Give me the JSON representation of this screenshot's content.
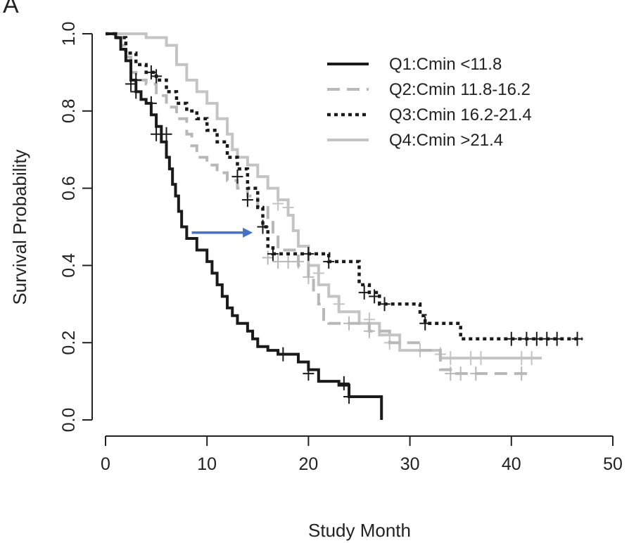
{
  "chart_data": {
    "type": "line",
    "subtype": "kaplan-meier",
    "panel_label": "A",
    "xlabel": "Study Month",
    "ylabel": "Survival Probability",
    "xlim": [
      0,
      50
    ],
    "ylim": [
      0.0,
      1.0
    ],
    "x_ticks": [
      "0",
      "10",
      "20",
      "30",
      "40",
      "50"
    ],
    "y_ticks": [
      "0.0",
      "0.2",
      "0.4",
      "0.6",
      "0.8",
      "1.0"
    ],
    "grid": false,
    "legend_position": "top-right",
    "series": [
      {
        "name": "Q1:Cmin <11.8",
        "color": "#1a1a1a",
        "style": "solid",
        "steps": [
          [
            0,
            1.0
          ],
          [
            1,
            0.99
          ],
          [
            1.5,
            0.96
          ],
          [
            2,
            0.93
          ],
          [
            2.5,
            0.88
          ],
          [
            3,
            0.85
          ],
          [
            3.5,
            0.83
          ],
          [
            4,
            0.82
          ],
          [
            4.5,
            0.79
          ],
          [
            5,
            0.76
          ],
          [
            5.5,
            0.72
          ],
          [
            6,
            0.68
          ],
          [
            6.3,
            0.65
          ],
          [
            6.6,
            0.61
          ],
          [
            6.9,
            0.58
          ],
          [
            7.2,
            0.54
          ],
          [
            7.5,
            0.5
          ],
          [
            8,
            0.47
          ],
          [
            9,
            0.44
          ],
          [
            10,
            0.41
          ],
          [
            10.5,
            0.38
          ],
          [
            11,
            0.35
          ],
          [
            11.5,
            0.32
          ],
          [
            12,
            0.29
          ],
          [
            12.5,
            0.27
          ],
          [
            13,
            0.25
          ],
          [
            14,
            0.23
          ],
          [
            14.5,
            0.21
          ],
          [
            15,
            0.19
          ],
          [
            16,
            0.18
          ],
          [
            17,
            0.17
          ],
          [
            19,
            0.15
          ],
          [
            20,
            0.13
          ],
          [
            21,
            0.1
          ],
          [
            23,
            0.09
          ],
          [
            24,
            0.06
          ],
          [
            27,
            0.06
          ],
          [
            27.2,
            0.0
          ]
        ],
        "censor": [
          [
            2.5,
            0.87
          ],
          [
            3,
            0.85
          ],
          [
            4.5,
            0.82
          ],
          [
            5,
            0.74
          ],
          [
            6,
            0.74
          ],
          [
            17.5,
            0.17
          ],
          [
            20,
            0.12
          ],
          [
            23.5,
            0.095
          ],
          [
            24,
            0.06
          ]
        ]
      },
      {
        "name": "Q2:Cmin 11.8-16.2",
        "color": "#b8b8b8",
        "style": "dashed",
        "steps": [
          [
            0,
            1.0
          ],
          [
            1,
            0.99
          ],
          [
            1.5,
            0.97
          ],
          [
            2,
            0.94
          ],
          [
            2.5,
            0.9
          ],
          [
            3,
            0.88
          ],
          [
            4,
            0.87
          ],
          [
            5,
            0.84
          ],
          [
            6,
            0.81
          ],
          [
            7,
            0.78
          ],
          [
            8,
            0.74
          ],
          [
            8.5,
            0.71
          ],
          [
            9,
            0.68
          ],
          [
            10,
            0.66
          ],
          [
            11,
            0.64
          ],
          [
            12,
            0.62
          ],
          [
            13,
            0.6
          ],
          [
            14,
            0.58
          ],
          [
            15,
            0.55
          ],
          [
            16,
            0.52
          ],
          [
            16.5,
            0.48
          ],
          [
            17,
            0.44
          ],
          [
            19,
            0.4
          ],
          [
            20,
            0.37
          ],
          [
            20.5,
            0.33
          ],
          [
            21,
            0.3
          ],
          [
            21.5,
            0.26
          ],
          [
            22,
            0.25
          ],
          [
            24,
            0.25
          ],
          [
            26,
            0.23
          ],
          [
            28,
            0.2
          ],
          [
            31,
            0.18
          ],
          [
            33,
            0.13
          ],
          [
            34,
            0.12
          ],
          [
            42,
            0.12
          ]
        ],
        "censor": [
          [
            16,
            0.42
          ],
          [
            17,
            0.41
          ],
          [
            18,
            0.41
          ],
          [
            19,
            0.41
          ],
          [
            20,
            0.37
          ],
          [
            24,
            0.25
          ],
          [
            26,
            0.23
          ],
          [
            34,
            0.12
          ],
          [
            35,
            0.12
          ],
          [
            36.5,
            0.12
          ],
          [
            41,
            0.12
          ]
        ]
      },
      {
        "name": "Q3:Cmin 16.2-21.4",
        "color": "#1a1a1a",
        "style": "dotted",
        "steps": [
          [
            0,
            1.0
          ],
          [
            1,
            0.99
          ],
          [
            2,
            0.95
          ],
          [
            3,
            0.92
          ],
          [
            4,
            0.9
          ],
          [
            5,
            0.88
          ],
          [
            6,
            0.85
          ],
          [
            7,
            0.82
          ],
          [
            8,
            0.8
          ],
          [
            9,
            0.78
          ],
          [
            10,
            0.75
          ],
          [
            11,
            0.72
          ],
          [
            12,
            0.68
          ],
          [
            13,
            0.65
          ],
          [
            14,
            0.6
          ],
          [
            15,
            0.55
          ],
          [
            15.5,
            0.5
          ],
          [
            16,
            0.45
          ],
          [
            16.5,
            0.43
          ],
          [
            20,
            0.43
          ],
          [
            22,
            0.41
          ],
          [
            25,
            0.35
          ],
          [
            26,
            0.33
          ],
          [
            27,
            0.3
          ],
          [
            31,
            0.27
          ],
          [
            31.5,
            0.25
          ],
          [
            35,
            0.21
          ],
          [
            47,
            0.21
          ]
        ],
        "censor": [
          [
            3,
            0.88
          ],
          [
            4.5,
            0.9
          ],
          [
            5,
            0.89
          ],
          [
            13,
            0.63
          ],
          [
            14,
            0.57
          ],
          [
            15.5,
            0.5
          ],
          [
            16.5,
            0.43
          ],
          [
            20,
            0.43
          ],
          [
            22,
            0.41
          ],
          [
            25.5,
            0.33
          ],
          [
            26.5,
            0.32
          ],
          [
            27.5,
            0.3
          ],
          [
            31.5,
            0.25
          ],
          [
            40,
            0.21
          ],
          [
            41.5,
            0.21
          ],
          [
            42.5,
            0.21
          ],
          [
            43.5,
            0.21
          ],
          [
            44.5,
            0.21
          ],
          [
            46.5,
            0.21
          ]
        ]
      },
      {
        "name": "Q4:Cmin >21.4",
        "color": "#c4c4c4",
        "style": "solid",
        "steps": [
          [
            0,
            1.0
          ],
          [
            2,
            1.0
          ],
          [
            4,
            0.99
          ],
          [
            6,
            0.97
          ],
          [
            7,
            0.92
          ],
          [
            8,
            0.88
          ],
          [
            9,
            0.85
          ],
          [
            10,
            0.82
          ],
          [
            11,
            0.78
          ],
          [
            12,
            0.74
          ],
          [
            12.5,
            0.7
          ],
          [
            13,
            0.68
          ],
          [
            14,
            0.66
          ],
          [
            15,
            0.63
          ],
          [
            16,
            0.6
          ],
          [
            17,
            0.57
          ],
          [
            18,
            0.53
          ],
          [
            18.5,
            0.49
          ],
          [
            19,
            0.45
          ],
          [
            20,
            0.4
          ],
          [
            21,
            0.35
          ],
          [
            22,
            0.32
          ],
          [
            23,
            0.28
          ],
          [
            25,
            0.25
          ],
          [
            27,
            0.22
          ],
          [
            29,
            0.18
          ],
          [
            33,
            0.16
          ],
          [
            43,
            0.16
          ]
        ],
        "censor": [
          [
            17,
            0.56
          ],
          [
            18,
            0.55
          ],
          [
            21,
            0.38
          ],
          [
            23,
            0.3
          ],
          [
            26,
            0.26
          ],
          [
            28,
            0.2
          ],
          [
            31,
            0.18
          ],
          [
            33,
            0.17
          ],
          [
            34,
            0.16
          ],
          [
            36,
            0.16
          ],
          [
            37,
            0.16
          ],
          [
            41,
            0.16
          ],
          [
            42,
            0.16
          ]
        ]
      }
    ],
    "annotations": [
      {
        "type": "arrow",
        "color": "#4472c4",
        "from": [
          8.5,
          0.485
        ],
        "to": [
          14.5,
          0.485
        ]
      }
    ]
  }
}
